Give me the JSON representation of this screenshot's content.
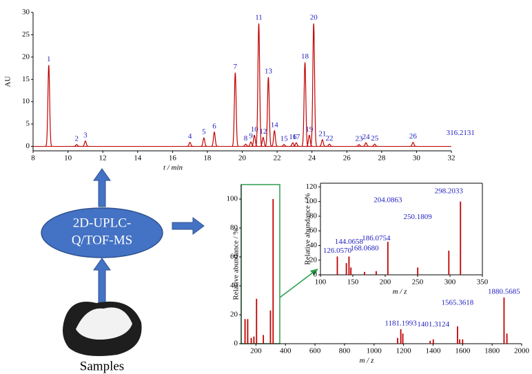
{
  "chart_data": [
    {
      "type": "line",
      "xlabel": "t / min",
      "ylabel": "AU",
      "color": "#c00000",
      "label_color": "#2020c0",
      "x": [
        8.9,
        10.5,
        11.0,
        17.0,
        17.8,
        18.4,
        19.6,
        20.2,
        20.5,
        20.7,
        20.95,
        21.2,
        21.5,
        21.85,
        22.4,
        22.9,
        23.1,
        23.6,
        23.85,
        24.1,
        24.6,
        25.0,
        26.7,
        27.1,
        27.6,
        29.8
      ],
      "values": [
        18.2,
        0.4,
        1.2,
        0.9,
        1.9,
        3.2,
        16.5,
        0.5,
        1.0,
        2.5,
        27.5,
        2.0,
        15.5,
        3.5,
        0.4,
        0.8,
        0.8,
        18.8,
        2.5,
        27.5,
        1.5,
        0.5,
        0.4,
        0.8,
        0.5,
        0.9
      ],
      "labels": [
        "1",
        "2",
        "3",
        "4",
        "5",
        "6",
        "7",
        "8",
        "9",
        "10",
        "11",
        "12",
        "13",
        "14",
        "15",
        "16",
        "17",
        "18",
        "19",
        "20",
        "21",
        "22",
        "23",
        "24",
        "25",
        "26"
      ],
      "xlim": [
        8,
        32
      ],
      "xticks": [
        8,
        10,
        12,
        14,
        16,
        18,
        20,
        22,
        24,
        26,
        28,
        30,
        32
      ],
      "ylim": [
        -1,
        30
      ],
      "yticks": [
        0,
        5,
        10,
        15,
        20,
        25,
        30
      ]
    },
    {
      "type": "bar",
      "xlabel": "m / z",
      "ylabel": "Relative abundance / %",
      "color": "#c00000",
      "label_color": "#2020c0",
      "x": [
        126.057,
        144.0658,
        168.068,
        186.0754,
        204.0863,
        250.1809,
        298.2033,
        316.2131,
        1160,
        1181.1993,
        1195,
        1380,
        1401.3124,
        1565.3618,
        1580,
        1600,
        1880.5685,
        1900
      ],
      "values": [
        17,
        17,
        4,
        5,
        31,
        6,
        23,
        100,
        4,
        10,
        7,
        2,
        3,
        12,
        3,
        3,
        32,
        7
      ],
      "labels": [
        null,
        null,
        null,
        null,
        null,
        null,
        null,
        null,
        null,
        "1181.1993",
        null,
        null,
        "1401.3124",
        "1565.3618",
        null,
        null,
        "1880.5685",
        null
      ],
      "xlim": [
        100,
        2000
      ],
      "xticks": [
        200,
        400,
        600,
        800,
        1000,
        1200,
        1400,
        1600,
        1800,
        2000
      ],
      "ylim": [
        0,
        110
      ],
      "yticks": [
        0,
        20,
        40,
        60,
        80,
        100
      ]
    },
    {
      "type": "bar",
      "xlabel": "m / z",
      "ylabel": "Relative abundance / %",
      "color": "#c00000",
      "label_color": "#2020c0",
      "x": [
        126.057,
        140,
        144.0658,
        147,
        168.068,
        186.0754,
        204.0863,
        250.1809,
        298.2033,
        316.2131
      ],
      "values": [
        25,
        16,
        25,
        10,
        4,
        5,
        45,
        10,
        33,
        100
      ],
      "labels": [
        "126.0570",
        null,
        "144.0658",
        null,
        "168.0680",
        "186.0754",
        "204.0863",
        "250.1809",
        "298.2033",
        "316.2131"
      ],
      "xlim": [
        100,
        350
      ],
      "xticks": [
        100,
        150,
        200,
        250,
        300,
        350
      ],
      "ylim": [
        0,
        125
      ],
      "yticks": [
        0,
        20,
        40,
        60,
        80,
        100,
        120
      ]
    }
  ],
  "diagram": {
    "method_lines": [
      "2D-UPLC-",
      "Q/TOF-MS"
    ],
    "sample": "Samples"
  }
}
